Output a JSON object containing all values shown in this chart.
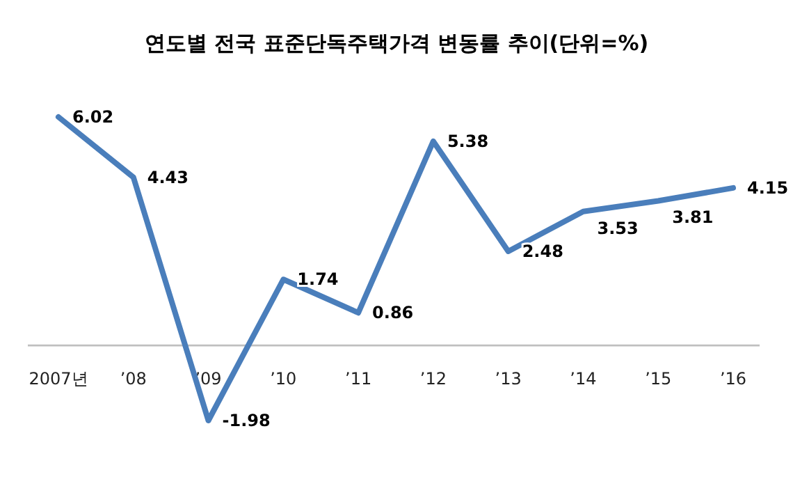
{
  "chart_data": {
    "type": "line",
    "title": "연도별 전국 표준단독주택가격 변동률 추이(단위=%)",
    "categories": [
      "2007년",
      "’08",
      "’09",
      "’10",
      "’11",
      "’12",
      "’13",
      "’14",
      "’15",
      "’16"
    ],
    "series": [
      {
        "color": "#4a7ebb",
        "values": [
          6.02,
          4.43,
          -1.98,
          1.74,
          0.86,
          5.38,
          2.48,
          3.53,
          3.81,
          4.15
        ]
      }
    ],
    "data_labels": true,
    "marker": "none",
    "line_style": "solid"
  }
}
